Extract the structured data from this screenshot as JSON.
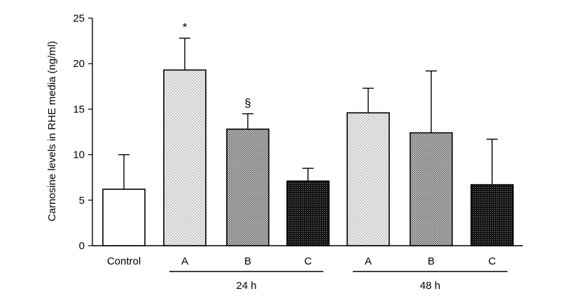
{
  "chart_data": {
    "type": "bar",
    "title": "",
    "xlabel": "",
    "ylabel": "Carnosine levels in RHE media (ng/ml)",
    "ylim": [
      0,
      25
    ],
    "yticks": [
      "0",
      "5",
      "10",
      "15",
      "20",
      "25"
    ],
    "categories": [
      "Control",
      "A",
      "B",
      "C",
      "A",
      "B",
      "C"
    ],
    "values": [
      6.2,
      19.3,
      12.8,
      7.1,
      14.6,
      12.4,
      6.7
    ],
    "errors": [
      3.8,
      3.5,
      1.7,
      1.4,
      2.7,
      6.8,
      5.0
    ],
    "fills": [
      "white",
      "light",
      "medium",
      "dark",
      "light",
      "medium",
      "dark"
    ],
    "annotations": [
      "",
      "*",
      "§",
      "",
      "",
      "",
      ""
    ],
    "groups": [
      {
        "label": "24 h",
        "members": [
          1,
          2,
          3
        ]
      },
      {
        "label": "48 h",
        "members": [
          4,
          5,
          6
        ]
      }
    ]
  }
}
